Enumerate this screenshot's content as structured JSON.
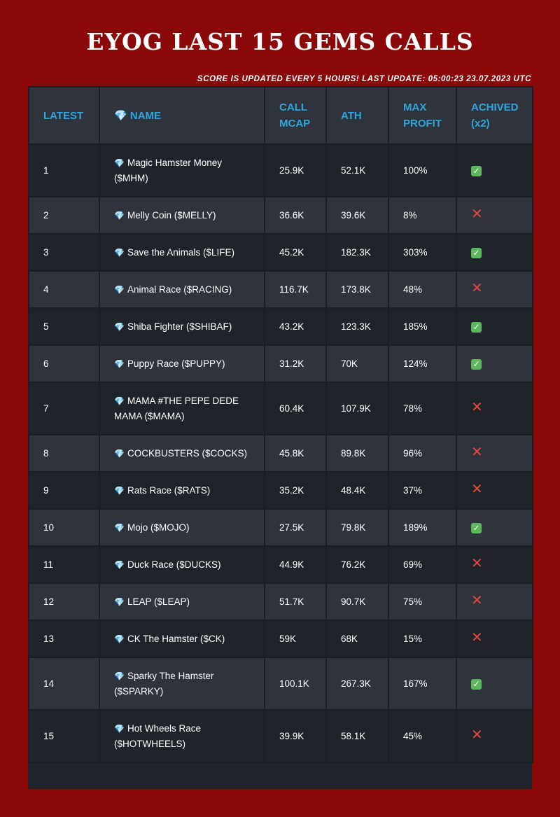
{
  "header": {
    "title": "EYOG LAST 15 GEMS CALLS",
    "subtitle": "SCORE IS UPDATED EVERY 5 HOURS! LAST UPDATE: 05:00:23 23.07.2023 UTC"
  },
  "table": {
    "columns": {
      "latest": "LATEST",
      "name": "NAME",
      "name_icon": "💎",
      "call_mcap_line1": "CALL",
      "call_mcap_line2": "MCAP",
      "ath": "ATH",
      "max_profit_line1": "MAX",
      "max_profit_line2": "PROFIT",
      "achived_line1": "ACHIVED",
      "achived_line2": "(x2)"
    },
    "rows": [
      {
        "latest": "1",
        "gem": "💎",
        "name": "Magic Hamster Money ($MHM)",
        "call_mcap": "25.9K",
        "ath": "52.1K",
        "max_profit": "100%",
        "achieved": true
      },
      {
        "latest": "2",
        "gem": "💎",
        "name": "Melly Coin ($MELLY)",
        "call_mcap": "36.6K",
        "ath": "39.6K",
        "max_profit": "8%",
        "achieved": false
      },
      {
        "latest": "3",
        "gem": "💎",
        "name": "Save the Animals ($LIFE)",
        "call_mcap": "45.2K",
        "ath": "182.3K",
        "max_profit": "303%",
        "achieved": true
      },
      {
        "latest": "4",
        "gem": "💎",
        "name": "Animal Race ($RACING)",
        "call_mcap": "116.7K",
        "ath": "173.8K",
        "max_profit": "48%",
        "achieved": false
      },
      {
        "latest": "5",
        "gem": "💎",
        "name": "Shiba Fighter ($SHIBAF)",
        "call_mcap": "43.2K",
        "ath": "123.3K",
        "max_profit": "185%",
        "achieved": true
      },
      {
        "latest": "6",
        "gem": "💎",
        "name": "Puppy Race ($PUPPY)",
        "call_mcap": "31.2K",
        "ath": "70K",
        "max_profit": "124%",
        "achieved": true
      },
      {
        "latest": "7",
        "gem": "💎",
        "name": "MAMA #THE PEPE DEDE MAMA ($MAMA)",
        "call_mcap": "60.4K",
        "ath": "107.9K",
        "max_profit": "78%",
        "achieved": false
      },
      {
        "latest": "8",
        "gem": "💎",
        "name": "COCKBUSTERS ($COCKS)",
        "call_mcap": "45.8K",
        "ath": "89.8K",
        "max_profit": "96%",
        "achieved": false
      },
      {
        "latest": "9",
        "gem": "💎",
        "name": "Rats Race ($RATS)",
        "call_mcap": "35.2K",
        "ath": "48.4K",
        "max_profit": "37%",
        "achieved": false
      },
      {
        "latest": "10",
        "gem": "💎",
        "name": "Mojo ($MOJO)",
        "call_mcap": "27.5K",
        "ath": "79.8K",
        "max_profit": "189%",
        "achieved": true
      },
      {
        "latest": "11",
        "gem": "💎",
        "name": "Duck Race ($DUCKS)",
        "call_mcap": "44.9K",
        "ath": "76.2K",
        "max_profit": "69%",
        "achieved": false
      },
      {
        "latest": "12",
        "gem": "💎",
        "name": "LEAP ($LEAP)",
        "call_mcap": "51.7K",
        "ath": "90.7K",
        "max_profit": "75%",
        "achieved": false
      },
      {
        "latest": "13",
        "gem": "💎",
        "name": "CK The Hamster ($CK)",
        "call_mcap": "59K",
        "ath": "68K",
        "max_profit": "15%",
        "achieved": false
      },
      {
        "latest": "14",
        "gem": "💎",
        "name": "Sparky The Hamster ($SPARKY)",
        "call_mcap": "100.1K",
        "ath": "267.3K",
        "max_profit": "167%",
        "achieved": true
      },
      {
        "latest": "15",
        "gem": "💎",
        "name": "Hot Wheels Race ($HOTWHEELS)",
        "call_mcap": "39.9K",
        "ath": "58.1K",
        "max_profit": "45%",
        "achieved": false
      }
    ],
    "achieved_icons": {
      "yes": "✓",
      "no": "✕"
    }
  },
  "colors": {
    "page_background": "#8a0808",
    "table_dark": "#1f232a",
    "table_light": "#2e333c",
    "header_text": "#2fa7de",
    "check": "#5cb85c",
    "cross": "#e5483c"
  }
}
